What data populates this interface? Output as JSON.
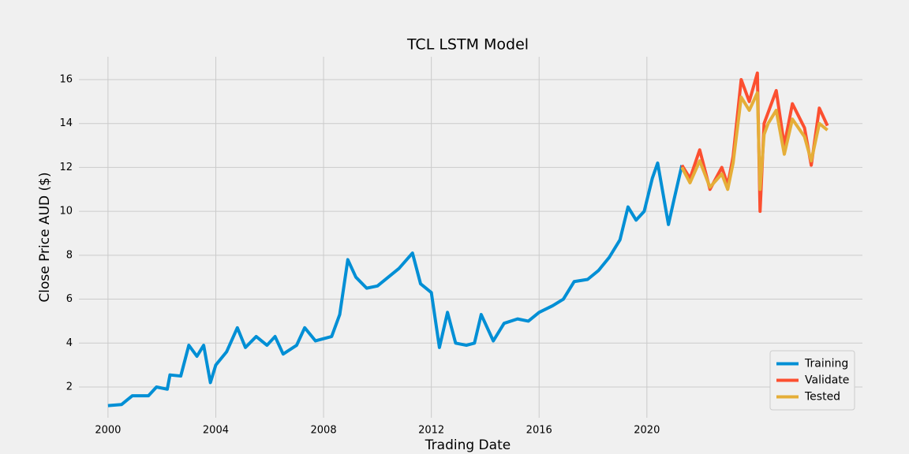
{
  "chart_data": {
    "type": "line",
    "title": "TCL LSTM Model",
    "xlabel": "Trading Date",
    "ylabel": "Close Price AUD ($)",
    "xlim": [
      1998.92,
      2028.0
    ],
    "xticks": [
      2000,
      2004,
      2008,
      2012,
      2016,
      2020
    ],
    "ylim": [
      0.6,
      17.04
    ],
    "yticks": [
      2,
      4,
      6,
      8,
      10,
      12,
      14,
      16
    ],
    "grid": true,
    "legend": "lower right",
    "series": [
      {
        "name": "Training",
        "color": "#008fd5",
        "x": [
          2000.0,
          2000.5,
          2000.9,
          2001.5,
          2001.8,
          2002.2,
          2002.3,
          2002.7,
          2003.0,
          2003.3,
          2003.55,
          2003.8,
          2004.0,
          2004.4,
          2004.8,
          2005.1,
          2005.5,
          2005.9,
          2006.2,
          2006.5,
          2007.0,
          2007.3,
          2007.7,
          2008.0,
          2008.3,
          2008.6,
          2008.9,
          2009.2,
          2009.6,
          2010.0,
          2010.4,
          2010.8,
          2011.3,
          2011.6,
          2012.0,
          2012.3,
          2012.6,
          2012.9,
          2013.3,
          2013.6,
          2013.85,
          2014.3,
          2014.7,
          2015.2,
          2015.6,
          2016.0,
          2016.5,
          2016.9,
          2017.3,
          2017.8,
          2018.2,
          2018.6,
          2019.0,
          2019.3,
          2019.6,
          2019.9,
          2020.2,
          2020.4,
          2020.6,
          2020.8,
          2021.0,
          2021.3
        ],
        "values": [
          1.15,
          1.2,
          1.6,
          1.6,
          2.0,
          1.9,
          2.55,
          2.5,
          3.9,
          3.4,
          3.9,
          2.2,
          3.0,
          3.6,
          4.7,
          3.8,
          4.3,
          3.9,
          4.3,
          3.5,
          3.9,
          4.7,
          4.1,
          4.2,
          4.3,
          5.3,
          7.8,
          7.0,
          6.5,
          6.6,
          7.0,
          7.4,
          8.1,
          6.7,
          6.3,
          3.8,
          5.4,
          4.0,
          3.9,
          4.0,
          5.3,
          4.1,
          4.9,
          5.1,
          5.0,
          5.4,
          5.7,
          6.0,
          6.8,
          6.9,
          7.3,
          7.9,
          8.7,
          10.2,
          9.6,
          10.0,
          11.5,
          12.2,
          10.8,
          9.4,
          10.5,
          12.1
        ]
      },
      {
        "name": "Validate",
        "color": "#fc4f30",
        "x": [
          2021.3,
          2021.6,
          2021.96,
          2022.34,
          2022.78,
          2023.0,
          2023.2,
          2023.5,
          2023.8,
          2024.1,
          2024.2,
          2024.35,
          2024.5,
          2024.8,
          2025.1,
          2025.4,
          2025.85,
          2026.1,
          2026.4,
          2026.7
        ],
        "values": [
          12.1,
          11.5,
          12.8,
          11.0,
          12.0,
          11.2,
          12.5,
          16.0,
          15.0,
          16.3,
          10.0,
          14.0,
          14.5,
          15.5,
          13.0,
          14.9,
          13.8,
          12.1,
          14.7,
          13.9
        ]
      },
      {
        "name": "Tested",
        "color": "#e5ae38",
        "x": [
          2021.3,
          2021.6,
          2021.96,
          2022.34,
          2022.78,
          2023.0,
          2023.2,
          2023.5,
          2023.8,
          2024.1,
          2024.2,
          2024.35,
          2024.5,
          2024.8,
          2025.1,
          2025.4,
          2025.85,
          2026.1,
          2026.4,
          2026.7
        ],
        "values": [
          12.0,
          11.3,
          12.3,
          11.1,
          11.7,
          11.0,
          12.2,
          15.2,
          14.6,
          15.4,
          11.0,
          13.5,
          14.0,
          14.6,
          12.6,
          14.2,
          13.4,
          12.3,
          14.0,
          13.7
        ]
      }
    ]
  }
}
